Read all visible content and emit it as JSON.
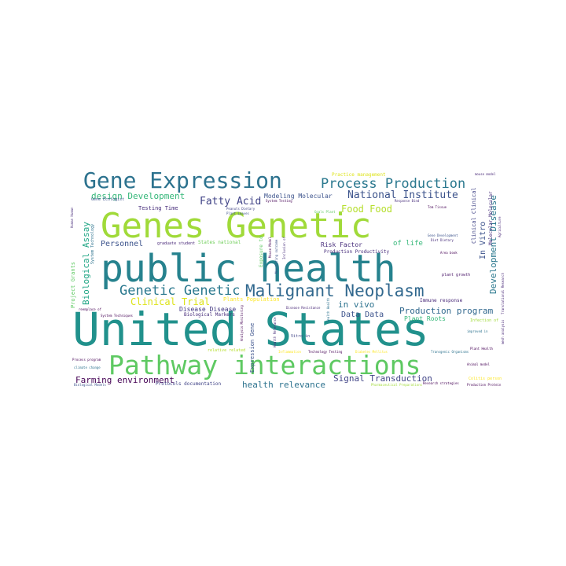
{
  "words": [
    {
      "text": "United States",
      "color": "#21918c"
    },
    {
      "text": "public health",
      "color": "#26828e"
    },
    {
      "text": "Genes Genetic",
      "color": "#a0da39"
    },
    {
      "text": "Pathway interactions",
      "color": "#5ec962"
    },
    {
      "text": "Gene Expression",
      "color": "#2c728e"
    },
    {
      "text": "Malignant Neoplasm",
      "color": "#31688e"
    },
    {
      "text": "Process Production",
      "color": "#2a788e"
    },
    {
      "text": "Genetic Genetic",
      "color": "#2a788e"
    },
    {
      "text": "National Institute",
      "color": "#3b528b"
    },
    {
      "text": "design Development",
      "color": "#35b779"
    },
    {
      "text": "Fatty Acid",
      "color": "#414487"
    },
    {
      "text": "Food Food",
      "color": "#b5de2b"
    },
    {
      "text": "Clinical Trial",
      "color": "#dde318"
    },
    {
      "text": "Biological Assay",
      "color": "#21a685"
    },
    {
      "text": "Development Disease",
      "color": "#2a788e"
    },
    {
      "text": "In Vitro",
      "color": "#3b528b"
    },
    {
      "text": "Farming environment",
      "color": "#440154"
    },
    {
      "text": "health relevance",
      "color": "#2c728e"
    },
    {
      "text": "Signal Transduction",
      "color": "#414487"
    },
    {
      "text": "Production program",
      "color": "#31688e"
    },
    {
      "text": "Data Data",
      "color": "#3b528b"
    },
    {
      "text": "in vivo",
      "color": "#2c728e"
    },
    {
      "text": "Personnel",
      "color": "#3b528b"
    },
    {
      "text": "Modeling Molecular",
      "color": "#3b528b"
    },
    {
      "text": "Testing Time",
      "color": "#472d7b"
    },
    {
      "text": "Disease Disease",
      "color": "#443983"
    },
    {
      "text": "Risk Factor",
      "color": "#472d7b"
    },
    {
      "text": "of life",
      "color": "#35b779"
    },
    {
      "text": "Project Grants",
      "color": "#5ec962"
    },
    {
      "text": "Expression Gene",
      "color": "#3b528b"
    },
    {
      "text": "Exposure to",
      "color": "#5ec962"
    },
    {
      "text": "Plant Roots",
      "color": "#35b779"
    },
    {
      "text": "Biological Markers",
      "color": "#472d7b"
    },
    {
      "text": "Protocols documentation",
      "color": "#414487"
    },
    {
      "text": "Molecular Molecular",
      "color": "#472d7b"
    },
    {
      "text": "Clinical Clinical",
      "color": "#414487"
    },
    {
      "text": "Plants Population",
      "color": "#fde725"
    },
    {
      "text": "Immune response",
      "color": "#482878"
    },
    {
      "text": "Production Productivity",
      "color": "#472d7b"
    },
    {
      "text": "graduate student",
      "color": "#482878"
    },
    {
      "text": "States national",
      "color": "#6ece58"
    },
    {
      "text": "System Technology",
      "color": "#2c728e"
    },
    {
      "text": "Practice management",
      "color": "#dde318"
    },
    {
      "text": "mouse model",
      "color": "#482878"
    },
    {
      "text": "Human Human",
      "color": "#472d7b"
    },
    {
      "text": "Goals Plant",
      "color": "#5ec962"
    },
    {
      "text": "Response Bind",
      "color": "#472d7b"
    },
    {
      "text": "Tom Tissue",
      "color": "#440154"
    },
    {
      "text": "Peanuts Dietary",
      "color": "#414487"
    },
    {
      "text": "Plant Leaves",
      "color": "#3b528b"
    },
    {
      "text": "System Testing",
      "color": "#440154"
    },
    {
      "text": "Health Health",
      "color": "#2c728e"
    },
    {
      "text": "Inclusion of",
      "color": "#472d7b"
    },
    {
      "text": "Mouse Model",
      "color": "#440154"
    },
    {
      "text": "Monitoring outcome",
      "color": "#3b528b"
    },
    {
      "text": "Gene Development",
      "color": "#3b528b"
    },
    {
      "text": "Diet Dietary",
      "color": "#472d7b"
    },
    {
      "text": "Agriculture",
      "color": "#482878"
    },
    {
      "text": "Area book",
      "color": "#440154"
    },
    {
      "text": "plant growth",
      "color": "#481467"
    },
    {
      "text": "Gene Ecologist",
      "color": "#3b528b"
    },
    {
      "text": "Disease Resistance",
      "color": "#482878"
    },
    {
      "text": "Technology Testing",
      "color": "#440154"
    },
    {
      "text": "Diabetes Mellitus",
      "color": "#fde725"
    },
    {
      "text": "Health Relevance",
      "color": "#472d7b"
    },
    {
      "text": "Transgenic Organisms",
      "color": "#2c728e"
    },
    {
      "text": "Plant Health",
      "color": "#440154"
    },
    {
      "text": "Vitro in",
      "color": "#414487"
    },
    {
      "text": "relative related",
      "color": "#b5de2b"
    },
    {
      "text": "Inflammation",
      "color": "#fde725"
    },
    {
      "text": "mesh analysis",
      "color": "#482878"
    },
    {
      "text": "improved in",
      "color": "#2c728e"
    },
    {
      "text": "Analysis Monitoring",
      "color": "#440154"
    },
    {
      "text": "Infection of",
      "color": "#a0da39"
    },
    {
      "text": "Translational Research",
      "color": "#482878"
    },
    {
      "text": "reemplace of",
      "color": "#440154"
    },
    {
      "text": "System Techniques",
      "color": "#440154"
    },
    {
      "text": "Process program",
      "color": "#440154"
    },
    {
      "text": "climate change",
      "color": "#2c728e"
    },
    {
      "text": "Biological Models",
      "color": "#3b528b"
    },
    {
      "text": "Pharmaceutical Preparations",
      "color": "#a0da39"
    },
    {
      "text": "Research strategies",
      "color": "#440154"
    },
    {
      "text": "Production Protein",
      "color": "#440154"
    },
    {
      "text": "Colitis person",
      "color": "#fde725"
    },
    {
      "text": "Animal model",
      "color": "#440154"
    }
  ]
}
